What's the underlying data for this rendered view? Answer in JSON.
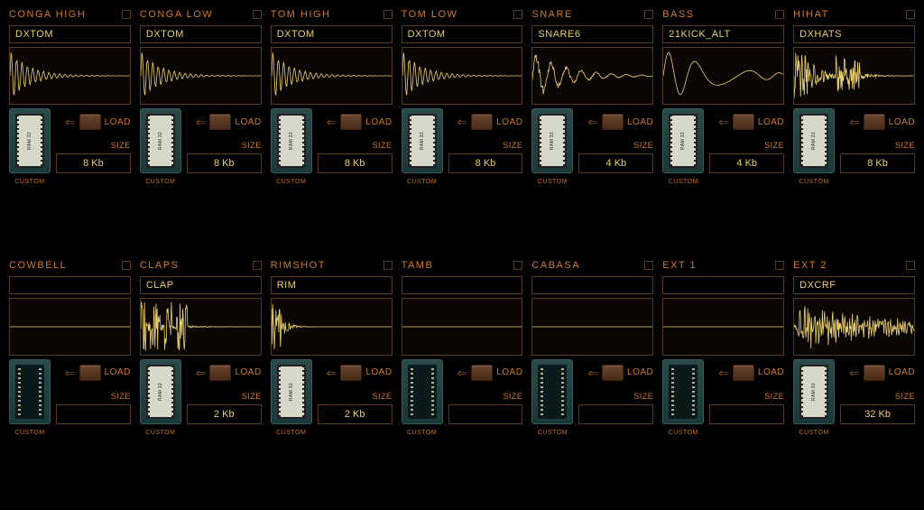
{
  "labels": {
    "load": "LOAD",
    "size": "SIZE",
    "custom": "CUSTOM"
  },
  "colors": {
    "accent": "#d47a2b",
    "text_value": "#e8d070",
    "border": "#5a3a1a",
    "waveform_stroke": "#e8d070",
    "chip_bg": "#1a3838",
    "background": "#000000"
  },
  "slots": [
    {
      "title": "CONGA HIGH",
      "sample": "DXTOM",
      "size": "8 Kb",
      "wave": "decay",
      "loaded": true
    },
    {
      "title": "CONGA LOW",
      "sample": "DXTOM",
      "size": "8 Kb",
      "wave": "decay",
      "loaded": true
    },
    {
      "title": "TOM HIGH",
      "sample": "DXTOM",
      "size": "8 Kb",
      "wave": "decay",
      "loaded": true
    },
    {
      "title": "TOM LOW",
      "sample": "DXTOM",
      "size": "8 Kb",
      "wave": "decay",
      "loaded": true
    },
    {
      "title": "SNARE",
      "sample": "SNARE6",
      "size": "4 Kb",
      "wave": "snare",
      "loaded": true
    },
    {
      "title": "BASS",
      "sample": "21KICK_ALT",
      "size": "4 Kb",
      "wave": "kick",
      "loaded": true
    },
    {
      "title": "HIHAT",
      "sample": "DXHATS",
      "size": "8 Kb",
      "wave": "hat",
      "loaded": true
    },
    {
      "title": "COWBELL",
      "sample": "",
      "size": "",
      "wave": "none",
      "loaded": false
    },
    {
      "title": "CLAPS",
      "sample": "CLAP",
      "size": "2 Kb",
      "wave": "clap",
      "loaded": true
    },
    {
      "title": "RIMSHOT",
      "sample": "RIM",
      "size": "2 Kb",
      "wave": "rim",
      "loaded": true
    },
    {
      "title": "TAMB",
      "sample": "",
      "size": "",
      "wave": "none",
      "loaded": false
    },
    {
      "title": "CABASA",
      "sample": "",
      "size": "",
      "wave": "none",
      "loaded": false
    },
    {
      "title": "EXT 1",
      "sample": "",
      "size": "",
      "wave": "none",
      "loaded": false
    },
    {
      "title": "EXT 2",
      "sample": "DXCRF",
      "size": "32 Kb",
      "wave": "crash",
      "loaded": true
    }
  ]
}
